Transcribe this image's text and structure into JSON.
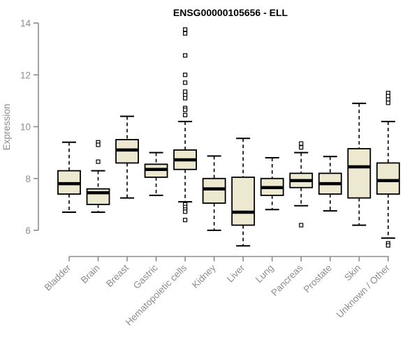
{
  "chart_data": {
    "type": "boxplot",
    "title": "ENSG00000105656 - ELL",
    "xlabel": "",
    "ylabel": "Expression",
    "ylim": [
      5.2,
      14.2
    ],
    "yticks": [
      6,
      8,
      10,
      12,
      14
    ],
    "grid": false,
    "legend": "none",
    "categories": [
      "Bladder",
      "Brain",
      "Breast",
      "Gastric",
      "Hematopoietic cells",
      "Kidney",
      "Liver",
      "Lung",
      "Pancreas",
      "Prostate",
      "Skin",
      "Unknown / Other"
    ],
    "series": [
      {
        "name": "Bladder",
        "whisker_low": 6.7,
        "q1": 7.4,
        "median": 7.8,
        "q3": 8.3,
        "whisker_high": 9.4,
        "outliers": []
      },
      {
        "name": "Brain",
        "whisker_low": 6.7,
        "q1": 7.0,
        "median": 7.45,
        "q3": 7.6,
        "whisker_high": 8.3,
        "outliers": [
          9.4,
          9.3,
          8.65
        ]
      },
      {
        "name": "Breast",
        "whisker_low": 7.25,
        "q1": 8.6,
        "median": 9.1,
        "q3": 9.5,
        "whisker_high": 10.4,
        "outliers": []
      },
      {
        "name": "Gastric",
        "whisker_low": 7.35,
        "q1": 8.05,
        "median": 8.35,
        "q3": 8.55,
        "whisker_high": 9.0,
        "outliers": []
      },
      {
        "name": "Hematopoietic cells",
        "whisker_low": 7.1,
        "q1": 8.35,
        "median": 8.72,
        "q3": 9.1,
        "whisker_high": 10.2,
        "outliers": [
          13.75,
          13.6,
          12.75,
          12.0,
          11.7,
          11.35,
          11.22,
          11.1,
          10.72,
          10.65,
          10.45,
          7.0,
          6.9,
          6.8,
          6.72,
          6.4
        ]
      },
      {
        "name": "Kidney",
        "whisker_low": 6.0,
        "q1": 7.05,
        "median": 7.6,
        "q3": 8.0,
        "whisker_high": 8.87,
        "outliers": []
      },
      {
        "name": "Liver",
        "whisker_low": 5.4,
        "q1": 6.2,
        "median": 6.7,
        "q3": 8.05,
        "whisker_high": 9.55,
        "outliers": []
      },
      {
        "name": "Lung",
        "whisker_low": 6.8,
        "q1": 7.35,
        "median": 7.65,
        "q3": 8.0,
        "whisker_high": 8.8,
        "outliers": []
      },
      {
        "name": "Pancreas",
        "whisker_low": 6.95,
        "q1": 7.65,
        "median": 7.92,
        "q3": 8.2,
        "whisker_high": 9.0,
        "outliers": [
          9.35,
          9.2,
          6.2
        ]
      },
      {
        "name": "Prostate",
        "whisker_low": 6.75,
        "q1": 7.4,
        "median": 7.8,
        "q3": 8.2,
        "whisker_high": 8.85,
        "outliers": []
      },
      {
        "name": "Skin",
        "whisker_low": 6.2,
        "q1": 7.25,
        "median": 8.45,
        "q3": 9.15,
        "whisker_high": 10.9,
        "outliers": []
      },
      {
        "name": "Unknown / Other",
        "whisker_low": 5.7,
        "q1": 7.4,
        "median": 7.92,
        "q3": 8.6,
        "whisker_high": 10.2,
        "outliers": [
          11.3,
          11.18,
          11.05,
          10.92,
          5.5,
          5.42
        ]
      }
    ]
  },
  "colors": {
    "box_fill": "#ede8d0",
    "box_border": "#000000",
    "median_line": "#000000",
    "whisker": "#000000",
    "outlier_stroke": "#000000",
    "outlier_fill": "#ffffff",
    "axis_line": "#8c8c8c",
    "axis_text": "#8c8c8c",
    "title_color": "#000000",
    "background": "#ffffff"
  }
}
